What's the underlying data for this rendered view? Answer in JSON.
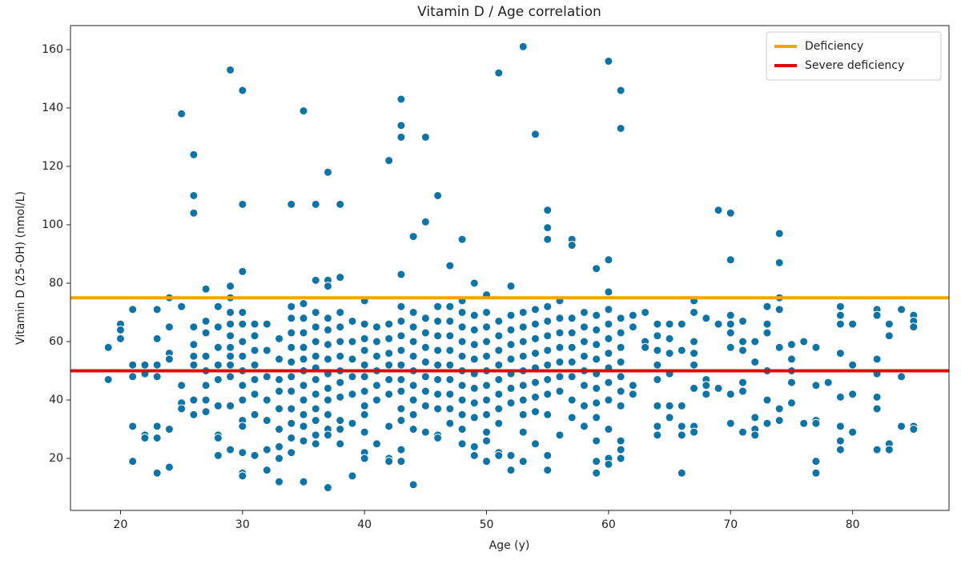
{
  "chart_data": {
    "type": "scatter",
    "title": "Vitamin D / Age correlation",
    "xlabel": "Age (y)",
    "ylabel": "Vitamin D (25-OH) (nmol/L)",
    "xlim": [
      15.9,
      87.9
    ],
    "ylim": [
      2.2,
      168.2
    ],
    "xticks": [
      20,
      30,
      40,
      50,
      60,
      70,
      80
    ],
    "yticks": [
      20,
      40,
      60,
      80,
      100,
      120,
      140,
      160
    ],
    "color": "#0e74a6",
    "legend": "upper right",
    "hlines": [
      {
        "name": "Deficiency",
        "color": "#f5a300",
        "value": 75
      },
      {
        "name": "Severe deficiency",
        "color": "#dd0a0a",
        "value": 50
      }
    ],
    "x": [
      19,
      19,
      20,
      20,
      20,
      21,
      21,
      21,
      21,
      21,
      22,
      22,
      22,
      22,
      23,
      23,
      23,
      23,
      23,
      23,
      23,
      24,
      24,
      24,
      24,
      24,
      24,
      25,
      25,
      25,
      25,
      25,
      26,
      26,
      26,
      26,
      26,
      26,
      26,
      26,
      26,
      27,
      27,
      27,
      27,
      27,
      27,
      27,
      27,
      28,
      28,
      28,
      28,
      28,
      28,
      28,
      28,
      28,
      29,
      29,
      29,
      29,
      29,
      29,
      29,
      29,
      29,
      29,
      29,
      29,
      30,
      30,
      30,
      30,
      30,
      30,
      30,
      30,
      30,
      30,
      30,
      30,
      30,
      30,
      30,
      31,
      31,
      31,
      31,
      31,
      31,
      31,
      31,
      32,
      32,
      32,
      32,
      32,
      32,
      32,
      33,
      33,
      33,
      33,
      33,
      33,
      33,
      33,
      33,
      34,
      34,
      34,
      34,
      34,
      34,
      34,
      34,
      34,
      34,
      34,
      34,
      35,
      35,
      35,
      35,
      35,
      35,
      35,
      35,
      35,
      35,
      35,
      35,
      35,
      36,
      36,
      36,
      36,
      36,
      36,
      36,
      36,
      36,
      36,
      36,
      36,
      36,
      37,
      37,
      37,
      37,
      37,
      37,
      37,
      37,
      37,
      37,
      37,
      37,
      37,
      37,
      38,
      38,
      38,
      38,
      38,
      38,
      38,
      38,
      38,
      38,
      38,
      38,
      39,
      39,
      39,
      39,
      39,
      39,
      39,
      40,
      40,
      40,
      40,
      40,
      40,
      40,
      40,
      40,
      40,
      40,
      40,
      41,
      41,
      41,
      41,
      41,
      41,
      41,
      42,
      42,
      42,
      42,
      42,
      42,
      42,
      42,
      42,
      42,
      43,
      43,
      43,
      43,
      43,
      43,
      43,
      43,
      43,
      43,
      43,
      43,
      43,
      43,
      43,
      44,
      44,
      44,
      44,
      44,
      44,
      44,
      44,
      44,
      44,
      44,
      45,
      45,
      45,
      45,
      45,
      45,
      45,
      45,
      45,
      45,
      46,
      46,
      46,
      46,
      46,
      46,
      46,
      46,
      46,
      46,
      46,
      47,
      47,
      47,
      47,
      47,
      47,
      47,
      47,
      47,
      47,
      48,
      48,
      48,
      48,
      48,
      48,
      48,
      48,
      48,
      48,
      48,
      48,
      49,
      49,
      49,
      49,
      49,
      49,
      49,
      49,
      49,
      49,
      49,
      50,
      50,
      50,
      50,
      50,
      50,
      50,
      50,
      50,
      50,
      50,
      50,
      51,
      51,
      51,
      51,
      51,
      51,
      51,
      51,
      51,
      51,
      51,
      52,
      52,
      52,
      52,
      52,
      52,
      52,
      52,
      52,
      52,
      53,
      53,
      53,
      53,
      53,
      53,
      53,
      53,
      53,
      53,
      53,
      54,
      54,
      54,
      54,
      54,
      54,
      54,
      54,
      54,
      54,
      55,
      55,
      55,
      55,
      55,
      55,
      55,
      55,
      55,
      55,
      55,
      55,
      55,
      56,
      56,
      56,
      56,
      56,
      56,
      56,
      56,
      57,
      57,
      57,
      57,
      57,
      57,
      57,
      57,
      57,
      58,
      58,
      58,
      58,
      58,
      58,
      58,
      58,
      59,
      59,
      59,
      59,
      59,
      59,
      59,
      59,
      59,
      59,
      59,
      59,
      60,
      60,
      60,
      60,
      60,
      60,
      60,
      60,
      60,
      60,
      60,
      60,
      60,
      61,
      61,
      61,
      61,
      61,
      61,
      61,
      61,
      61,
      61,
      61,
      61,
      62,
      62,
      62,
      62,
      63,
      63,
      63,
      64,
      64,
      64,
      64,
      64,
      64,
      64,
      64,
      65,
      65,
      65,
      65,
      65,
      65,
      66,
      66,
      66,
      66,
      66,
      66,
      67,
      67,
      67,
      67,
      67,
      67,
      67,
      67,
      68,
      68,
      68,
      68,
      69,
      69,
      69,
      70,
      70,
      70,
      70,
      70,
      70,
      70,
      70,
      71,
      71,
      71,
      71,
      71,
      71,
      72,
      72,
      72,
      72,
      72,
      73,
      73,
      73,
      73,
      73,
      73,
      74,
      74,
      74,
      74,
      74,
      74,
      74,
      75,
      75,
      75,
      75,
      75,
      76,
      76,
      77,
      77,
      77,
      77,
      77,
      77,
      78,
      79,
      79,
      79,
      79,
      79,
      79,
      79,
      79,
      80,
      80,
      80,
      80,
      82,
      82,
      82,
      82,
      82,
      82,
      82,
      83,
      83,
      83,
      83,
      84,
      84,
      84,
      85,
      85,
      85,
      85,
      85
    ],
    "values": [
      58,
      47,
      66,
      64,
      61,
      71,
      52,
      48,
      31,
      19,
      52,
      49,
      28,
      27,
      71,
      61,
      52,
      48,
      31,
      27,
      15,
      75,
      65,
      56,
      54,
      30,
      17,
      138,
      72,
      45,
      39,
      37,
      124,
      110,
      104,
      65,
      59,
      55,
      52,
      40,
      35,
      78,
      67,
      63,
      55,
      50,
      45,
      40,
      36,
      72,
      65,
      58,
      52,
      47,
      38,
      28,
      27,
      21,
      153,
      79,
      75,
      70,
      66,
      62,
      58,
      55,
      52,
      48,
      38,
      23,
      146,
      107,
      84,
      70,
      66,
      60,
      55,
      50,
      45,
      40,
      33,
      31,
      22,
      15,
      14,
      66,
      62,
      57,
      52,
      47,
      42,
      35,
      21,
      66,
      57,
      48,
      40,
      33,
      23,
      16,
      61,
      54,
      47,
      43,
      37,
      30,
      24,
      20,
      12,
      107,
      72,
      68,
      63,
      58,
      53,
      48,
      43,
      37,
      32,
      27,
      22,
      139,
      73,
      68,
      63,
      58,
      54,
      50,
      45,
      40,
      35,
      31,
      26,
      12,
      107,
      81,
      70,
      65,
      60,
      55,
      51,
      47,
      42,
      37,
      33,
      28,
      25,
      118,
      81,
      79,
      68,
      64,
      59,
      54,
      49,
      44,
      40,
      35,
      30,
      28,
      10,
      107,
      82,
      70,
      65,
      60,
      55,
      50,
      46,
      41,
      33,
      30,
      25,
      67,
      60,
      54,
      48,
      42,
      32,
      14,
      74,
      66,
      61,
      57,
      52,
      48,
      43,
      38,
      35,
      29,
      22,
      20,
      65,
      60,
      55,
      50,
      45,
      40,
      25,
      122,
      66,
      61,
      56,
      52,
      47,
      42,
      31,
      20,
      19,
      143,
      134,
      130,
      83,
      72,
      67,
      62,
      57,
      52,
      47,
      43,
      37,
      33,
      23,
      19,
      96,
      70,
      65,
      60,
      55,
      50,
      45,
      40,
      35,
      30,
      11,
      130,
      101,
      68,
      63,
      58,
      53,
      48,
      43,
      38,
      29,
      110,
      72,
      67,
      62,
      57,
      52,
      47,
      42,
      37,
      28,
      27,
      86,
      72,
      67,
      62,
      57,
      52,
      47,
      42,
      37,
      32,
      95,
      74,
      70,
      65,
      60,
      55,
      50,
      45,
      40,
      35,
      30,
      25,
      80,
      69,
      64,
      59,
      54,
      49,
      44,
      39,
      34,
      24,
      21,
      76,
      70,
      65,
      60,
      55,
      50,
      45,
      40,
      35,
      29,
      26,
      19,
      152,
      67,
      62,
      57,
      52,
      47,
      42,
      37,
      32,
      22,
      21,
      79,
      69,
      64,
      59,
      54,
      49,
      44,
      39,
      21,
      16,
      161,
      70,
      65,
      60,
      55,
      50,
      45,
      40,
      35,
      29,
      19,
      131,
      71,
      66,
      61,
      56,
      51,
      46,
      41,
      36,
      25,
      105,
      99,
      95,
      72,
      67,
      62,
      57,
      52,
      47,
      42,
      35,
      21,
      16,
      74,
      68,
      63,
      58,
      53,
      48,
      43,
      28,
      95,
      93,
      68,
      63,
      58,
      53,
      48,
      40,
      34,
      70,
      65,
      60,
      55,
      50,
      45,
      38,
      31,
      85,
      69,
      64,
      59,
      54,
      49,
      44,
      39,
      34,
      26,
      19,
      15,
      156,
      88,
      77,
      71,
      66,
      61,
      56,
      51,
      46,
      40,
      30,
      20,
      18,
      146,
      133,
      68,
      63,
      58,
      53,
      48,
      43,
      38,
      26,
      23,
      20,
      69,
      65,
      45,
      42,
      70,
      60,
      58,
      66,
      62,
      57,
      52,
      47,
      38,
      31,
      28,
      66,
      61,
      56,
      49,
      38,
      34,
      66,
      57,
      38,
      31,
      28,
      15,
      74,
      70,
      60,
      56,
      52,
      44,
      31,
      29,
      68,
      47,
      45,
      42,
      105,
      66,
      44,
      104,
      88,
      69,
      66,
      63,
      58,
      42,
      32,
      67,
      60,
      57,
      46,
      43,
      29,
      60,
      53,
      34,
      30,
      28,
      72,
      66,
      63,
      50,
      40,
      32,
      97,
      87,
      75,
      71,
      58,
      37,
      33,
      59,
      54,
      50,
      46,
      39,
      60,
      32,
      58,
      45,
      33,
      32,
      19,
      15,
      46,
      72,
      69,
      66,
      56,
      41,
      31,
      26,
      23,
      66,
      52,
      42,
      29,
      71,
      69,
      54,
      49,
      41,
      37,
      23,
      66,
      62,
      25,
      23,
      71,
      48,
      31,
      69,
      67,
      65,
      31,
      30
    ]
  }
}
